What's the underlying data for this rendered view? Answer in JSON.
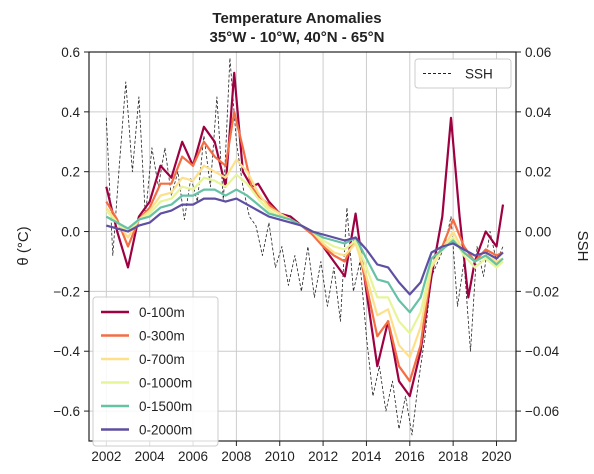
{
  "chart_data": {
    "type": "line",
    "title": "Temperature Anomalies",
    "subtitle": "35°W - 10°W, 40°N - 65°N",
    "ylabel": "θ (°C)",
    "y2label": "SSH",
    "xlim": [
      2001.2,
      2020.9
    ],
    "ylim": [
      -0.7,
      0.6
    ],
    "y2lim": [
      -0.07,
      0.06
    ],
    "xticks": [
      "2002",
      "2004",
      "2006",
      "2008",
      "2010",
      "2012",
      "2014",
      "2016",
      "2018",
      "2020"
    ],
    "yticks": [
      "0.6",
      "0.4",
      "0.2",
      "0.0",
      "−0.2",
      "−0.4",
      "−0.6"
    ],
    "y2ticks": [
      "0.06",
      "0.04",
      "0.02",
      "0.00",
      "−0.02",
      "−0.04",
      "−0.06"
    ],
    "grid": true,
    "legend_left_position": "lower-left",
    "legend_right_position": "top-right",
    "series": [
      {
        "name": "0-100m",
        "color": "#9e0142",
        "x": [
          2002.0,
          2002.5,
          2003.0,
          2003.5,
          2004.0,
          2004.5,
          2005.0,
          2005.5,
          2006.0,
          2006.5,
          2007.0,
          2007.5,
          2007.9,
          2008.3,
          2008.7,
          2009.0,
          2009.5,
          2010.0,
          2010.5,
          2011.0,
          2011.5,
          2012.0,
          2012.5,
          2013.0,
          2013.5,
          2014.0,
          2014.5,
          2015.0,
          2015.5,
          2016.0,
          2016.5,
          2017.0,
          2017.5,
          2017.9,
          2018.3,
          2018.7,
          2019.0,
          2019.5,
          2020.0,
          2020.3
        ],
        "values": [
          0.15,
          0.0,
          -0.12,
          0.05,
          0.1,
          0.22,
          0.18,
          0.3,
          0.22,
          0.35,
          0.3,
          0.15,
          0.53,
          0.2,
          0.15,
          0.16,
          0.1,
          0.06,
          0.05,
          0.02,
          0.0,
          -0.05,
          -0.1,
          -0.15,
          0.06,
          -0.2,
          -0.45,
          -0.3,
          -0.5,
          -0.55,
          -0.4,
          -0.15,
          0.05,
          0.38,
          0.05,
          -0.22,
          -0.1,
          0.0,
          -0.05,
          0.09
        ]
      },
      {
        "name": "0-300m",
        "color": "#f46d43",
        "x": [
          2002.0,
          2002.5,
          2003.0,
          2003.5,
          2004.0,
          2004.5,
          2005.0,
          2005.5,
          2006.0,
          2006.5,
          2007.0,
          2007.5,
          2007.9,
          2008.3,
          2008.7,
          2009.0,
          2009.5,
          2010.0,
          2010.5,
          2011.0,
          2011.5,
          2012.0,
          2012.5,
          2013.0,
          2013.5,
          2014.0,
          2014.5,
          2015.0,
          2015.5,
          2016.0,
          2016.5,
          2017.0,
          2017.5,
          2018.0,
          2018.5,
          2019.0,
          2019.5,
          2020.0,
          2020.3
        ],
        "values": [
          0.1,
          0.04,
          -0.05,
          0.04,
          0.08,
          0.16,
          0.16,
          0.25,
          0.22,
          0.3,
          0.25,
          0.22,
          0.4,
          0.28,
          0.15,
          0.12,
          0.09,
          0.06,
          0.04,
          0.02,
          -0.01,
          -0.05,
          -0.08,
          -0.1,
          -0.02,
          -0.18,
          -0.35,
          -0.3,
          -0.45,
          -0.5,
          -0.38,
          -0.12,
          -0.05,
          0.04,
          -0.05,
          -0.1,
          -0.06,
          -0.08,
          -0.07
        ]
      },
      {
        "name": "0-700m",
        "color": "#fee08b",
        "x": [
          2002.0,
          2002.5,
          2003.0,
          2003.5,
          2004.0,
          2004.5,
          2005.0,
          2005.5,
          2006.0,
          2006.5,
          2007.0,
          2007.5,
          2008.0,
          2008.5,
          2009.0,
          2009.5,
          2010.0,
          2010.5,
          2011.0,
          2011.5,
          2012.0,
          2012.5,
          2013.0,
          2013.5,
          2014.0,
          2014.5,
          2015.0,
          2015.5,
          2016.0,
          2016.5,
          2017.0,
          2017.5,
          2018.0,
          2018.5,
          2019.0,
          2019.5,
          2020.0,
          2020.3
        ],
        "values": [
          0.08,
          0.03,
          -0.02,
          0.04,
          0.07,
          0.12,
          0.13,
          0.18,
          0.17,
          0.22,
          0.2,
          0.18,
          0.24,
          0.2,
          0.13,
          0.08,
          0.06,
          0.04,
          0.02,
          0.0,
          -0.04,
          -0.07,
          -0.08,
          -0.04,
          -0.15,
          -0.28,
          -0.26,
          -0.38,
          -0.42,
          -0.32,
          -0.12,
          -0.06,
          0.0,
          -0.07,
          -0.1,
          -0.08,
          -0.1,
          -0.09
        ]
      },
      {
        "name": "0-1000m",
        "color": "#e6f598",
        "x": [
          2002.0,
          2002.5,
          2003.0,
          2003.5,
          2004.0,
          2004.5,
          2005.0,
          2005.5,
          2006.0,
          2006.5,
          2007.0,
          2007.5,
          2008.0,
          2008.5,
          2009.0,
          2009.5,
          2010.0,
          2010.5,
          2011.0,
          2011.5,
          2012.0,
          2012.5,
          2013.0,
          2013.5,
          2014.0,
          2014.5,
          2015.0,
          2015.5,
          2016.0,
          2016.5,
          2017.0,
          2017.5,
          2018.0,
          2018.5,
          2019.0,
          2019.5,
          2020.0,
          2020.3
        ],
        "values": [
          0.07,
          0.03,
          0.0,
          0.04,
          0.06,
          0.1,
          0.11,
          0.15,
          0.14,
          0.18,
          0.17,
          0.15,
          0.19,
          0.16,
          0.11,
          0.07,
          0.05,
          0.04,
          0.02,
          0.0,
          -0.03,
          -0.05,
          -0.06,
          -0.03,
          -0.12,
          -0.22,
          -0.22,
          -0.3,
          -0.34,
          -0.27,
          -0.11,
          -0.06,
          -0.02,
          -0.08,
          -0.12,
          -0.09,
          -0.12,
          -0.1
        ]
      },
      {
        "name": "0-1500m",
        "color": "#66c2a5",
        "x": [
          2002.0,
          2002.5,
          2003.0,
          2003.5,
          2004.0,
          2004.5,
          2005.0,
          2005.5,
          2006.0,
          2006.5,
          2007.0,
          2007.5,
          2008.0,
          2008.5,
          2009.0,
          2009.5,
          2010.0,
          2010.5,
          2011.0,
          2011.5,
          2012.0,
          2012.5,
          2013.0,
          2013.5,
          2014.0,
          2014.5,
          2015.0,
          2015.5,
          2016.0,
          2016.5,
          2017.0,
          2017.5,
          2018.0,
          2018.5,
          2019.0,
          2019.5,
          2020.0,
          2020.3
        ],
        "values": [
          0.05,
          0.03,
          0.01,
          0.04,
          0.05,
          0.08,
          0.09,
          0.12,
          0.12,
          0.14,
          0.14,
          0.12,
          0.14,
          0.12,
          0.09,
          0.06,
          0.05,
          0.04,
          0.02,
          0.0,
          -0.02,
          -0.03,
          -0.04,
          -0.02,
          -0.09,
          -0.16,
          -0.17,
          -0.23,
          -0.27,
          -0.22,
          -0.09,
          -0.06,
          -0.03,
          -0.07,
          -0.1,
          -0.08,
          -0.11,
          -0.09
        ]
      },
      {
        "name": "0-2000m",
        "color": "#5e4fa2",
        "x": [
          2002.0,
          2002.5,
          2003.0,
          2003.5,
          2004.0,
          2004.5,
          2005.0,
          2005.5,
          2006.0,
          2006.5,
          2007.0,
          2007.5,
          2008.0,
          2008.5,
          2009.0,
          2009.5,
          2010.0,
          2010.5,
          2011.0,
          2011.5,
          2012.0,
          2012.5,
          2013.0,
          2013.5,
          2014.0,
          2014.5,
          2015.0,
          2015.5,
          2016.0,
          2016.5,
          2017.0,
          2017.5,
          2018.0,
          2018.5,
          2019.0,
          2019.5,
          2020.0,
          2020.3
        ],
        "values": [
          0.02,
          0.01,
          0.0,
          0.02,
          0.03,
          0.06,
          0.07,
          0.09,
          0.09,
          0.11,
          0.11,
          0.1,
          0.11,
          0.09,
          0.07,
          0.05,
          0.04,
          0.03,
          0.02,
          0.0,
          -0.01,
          -0.02,
          -0.03,
          -0.02,
          -0.06,
          -0.11,
          -0.12,
          -0.17,
          -0.21,
          -0.17,
          -0.07,
          -0.05,
          -0.04,
          -0.06,
          -0.08,
          -0.07,
          -0.09,
          -0.07
        ]
      },
      {
        "name": "SSH",
        "axis": "right",
        "color": "#222222",
        "dashed": true,
        "x": [
          2002.0,
          2002.3,
          2002.6,
          2002.9,
          2003.2,
          2003.5,
          2003.8,
          2004.1,
          2004.4,
          2004.7,
          2005.0,
          2005.3,
          2005.6,
          2005.9,
          2006.2,
          2006.5,
          2006.8,
          2007.1,
          2007.4,
          2007.7,
          2008.0,
          2008.3,
          2008.6,
          2008.9,
          2009.2,
          2009.5,
          2009.8,
          2010.1,
          2010.4,
          2010.7,
          2011.0,
          2011.3,
          2011.6,
          2011.9,
          2012.2,
          2012.5,
          2012.8,
          2013.1,
          2013.4,
          2013.7,
          2014.0,
          2014.3,
          2014.6,
          2014.9,
          2015.2,
          2015.5,
          2015.8,
          2016.1,
          2016.4,
          2016.7,
          2017.0,
          2017.3,
          2017.6,
          2017.9,
          2018.2,
          2018.5,
          2018.8,
          2019.1,
          2019.4,
          2019.7,
          2020.0,
          2020.3
        ],
        "values": [
          0.038,
          -0.008,
          0.022,
          0.05,
          0.02,
          0.045,
          0.005,
          0.028,
          0.015,
          0.028,
          0.012,
          0.02,
          0.004,
          0.018,
          0.01,
          0.032,
          0.015,
          0.045,
          0.01,
          0.058,
          0.03,
          0.015,
          0.005,
          0.002,
          -0.008,
          0.003,
          -0.012,
          -0.005,
          -0.018,
          -0.008,
          -0.02,
          -0.005,
          -0.022,
          -0.01,
          -0.025,
          -0.012,
          -0.03,
          0.008,
          -0.02,
          -0.01,
          -0.035,
          -0.055,
          -0.045,
          -0.06,
          -0.05,
          -0.066,
          -0.055,
          -0.068,
          -0.05,
          -0.035,
          -0.015,
          -0.01,
          -0.005,
          0.005,
          -0.025,
          -0.01,
          -0.04,
          -0.005,
          -0.015,
          0.0,
          -0.01,
          -0.005
        ]
      }
    ]
  }
}
